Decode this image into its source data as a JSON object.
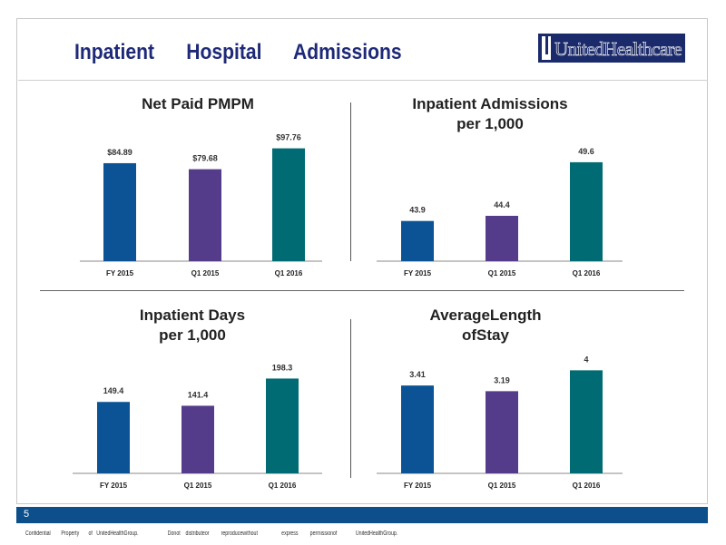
{
  "slide": {
    "title": "Inpatient      Hospital      Admissions",
    "logo_text": "UnitedHealthcare",
    "page_number": "5",
    "footer": "Confidential        Property       of   UnitedHealthGroup.                      Donot    distributeor         reproducewithout                  express         permissionof              UnitedHealthGroup."
  },
  "colors": [
    "#0b5394",
    "#553c8b",
    "#006b73"
  ],
  "chart_data": [
    {
      "type": "bar",
      "title": "Net   Paid   PMPM",
      "categories": [
        "FY   2015",
        "Q1    2015",
        "Q1    2016"
      ],
      "values": [
        84.89,
        79.68,
        97.76
      ],
      "value_labels": [
        "$84.89",
        "$79.68",
        "$97.76"
      ],
      "ylim": [
        0,
        110
      ]
    },
    {
      "type": "bar",
      "title": "Inpatient     Admissions\nper   1,000",
      "categories": [
        "FY   2015",
        "Q1    2015",
        "Q1    2016"
      ],
      "values": [
        43.9,
        44.4,
        49.6
      ],
      "value_labels": [
        "43.9",
        "44.4",
        "49.6"
      ],
      "ylim": [
        40,
        51
      ]
    },
    {
      "type": "bar",
      "title": "Inpatient       Days\nper   1,000",
      "categories": [
        "FY   2015",
        "Q1    2015",
        "Q1    2016"
      ],
      "values": [
        149.4,
        141.4,
        198.3
      ],
      "value_labels": [
        "149.4",
        "141.4",
        "198.3"
      ],
      "ylim": [
        0,
        220
      ]
    },
    {
      "type": "bar",
      "title": "AverageLength\nofStay",
      "categories": [
        "FY   2015",
        "Q1    2015",
        "Q1    2016"
      ],
      "values": [
        3.41,
        3.19,
        4
      ],
      "value_labels": [
        "3.41",
        "3.19",
        "4"
      ],
      "ylim": [
        0,
        4.4
      ]
    }
  ]
}
